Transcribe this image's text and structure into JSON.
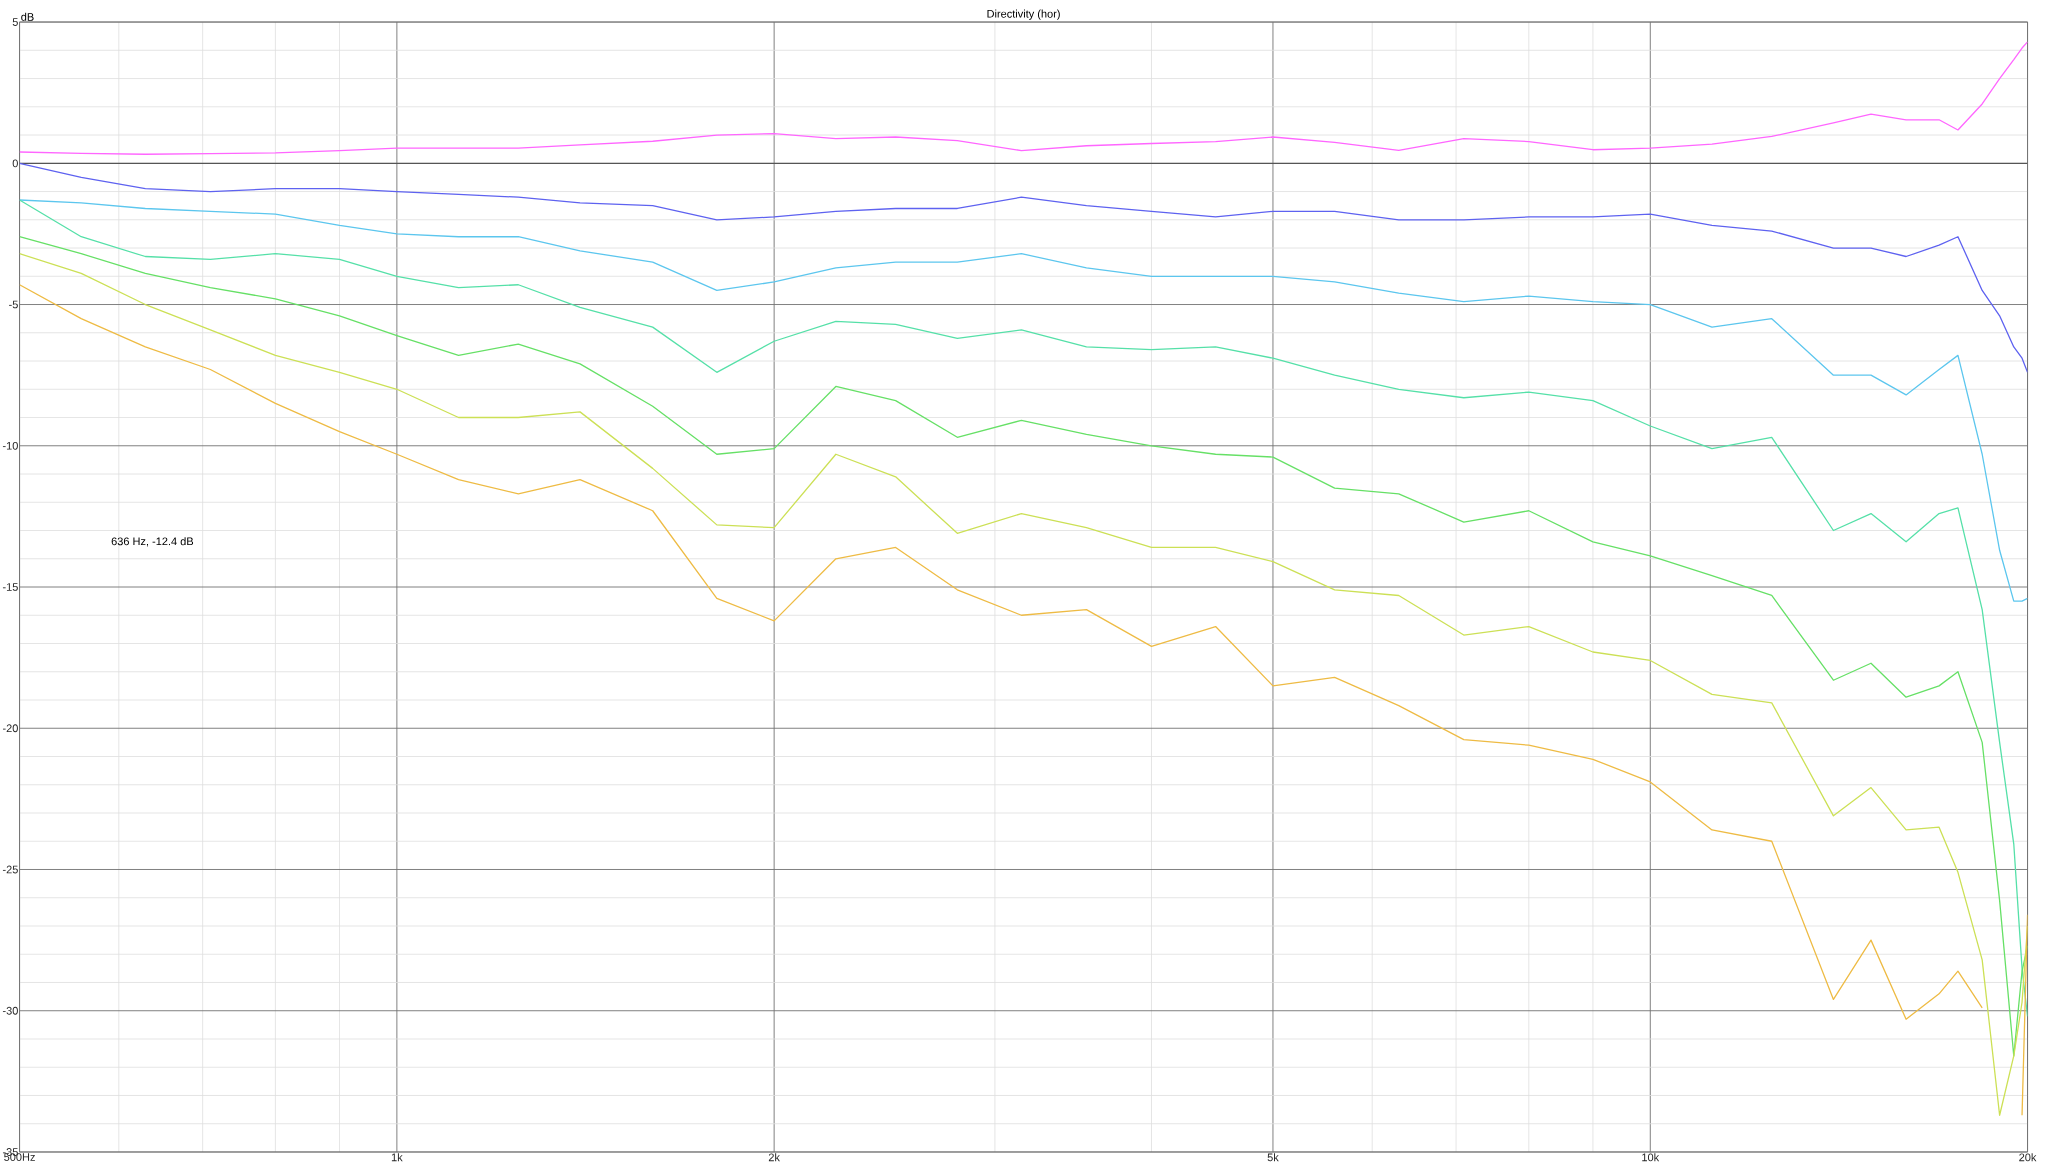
{
  "chart_data": {
    "type": "line",
    "title": "Directivity (hor)",
    "ylabel": "dB",
    "annotations": [
      "636 Hz, -12.4 dB"
    ],
    "log": "x",
    "grid": true,
    "line_style": "solid",
    "xlim": [
      500,
      20000
    ],
    "ylim": [
      -35,
      5
    ],
    "xticks": [
      {
        "value": 500,
        "label": "500Hz"
      },
      {
        "value": 1000,
        "label": "1k"
      },
      {
        "value": 2000,
        "label": "2k"
      },
      {
        "value": 5000,
        "label": "5k"
      },
      {
        "value": 10000,
        "label": "10k"
      },
      {
        "value": 20000,
        "label": "20k"
      }
    ],
    "yticks": [
      5,
      0,
      -5,
      -10,
      -15,
      -20,
      -25,
      -30,
      -35
    ],
    "x": [
      500,
      560,
      630,
      710,
      800,
      900,
      1000,
      1120,
      1250,
      1400,
      1600,
      1800,
      2000,
      2240,
      2500,
      2800,
      3150,
      3550,
      4000,
      4500,
      5000,
      5600,
      6300,
      7100,
      8000,
      9000,
      10000,
      11200,
      12500,
      14000,
      15000,
      16000,
      17000,
      17600,
      18400,
      19000,
      19500,
      19800,
      20000
    ],
    "series": [
      {
        "color": "#555555",
        "x": [
          500,
          20000
        ],
        "values": [
          0,
          0
        ]
      },
      {
        "color": "#ff66ff",
        "values": [
          0.4,
          0.35,
          0.32,
          0.34,
          0.37,
          0.45,
          0.54,
          0.54,
          0.54,
          0.65,
          0.78,
          1.0,
          1.05,
          0.87,
          0.93,
          0.8,
          0.45,
          0.62,
          0.7,
          0.77,
          0.93,
          0.74,
          0.46,
          0.87,
          0.77,
          0.48,
          0.54,
          0.68,
          0.95,
          1.43,
          1.74,
          1.54,
          1.54,
          1.18,
          2.1,
          3.0,
          3.67,
          4.08,
          4.3
        ]
      },
      {
        "color": "#5e62f0",
        "values": [
          0.0,
          -0.5,
          -0.9,
          -1.0,
          -0.9,
          -0.9,
          -1.0,
          -1.1,
          -1.2,
          -1.4,
          -1.5,
          -2.0,
          -1.9,
          -1.7,
          -1.6,
          -1.6,
          -1.2,
          -1.5,
          -1.7,
          -1.9,
          -1.7,
          -1.7,
          -2.0,
          -2.0,
          -1.9,
          -1.9,
          -1.8,
          -2.2,
          -2.4,
          -3.0,
          -3.0,
          -3.3,
          -2.9,
          -2.6,
          -4.5,
          -5.4,
          -6.5,
          -6.9,
          -7.4
        ]
      },
      {
        "color": "#5cc6ee",
        "values": [
          -1.3,
          -1.4,
          -1.6,
          -1.7,
          -1.8,
          -2.2,
          -2.5,
          -2.6,
          -2.6,
          -3.1,
          -3.5,
          -4.5,
          -4.2,
          -3.7,
          -3.5,
          -3.5,
          -3.2,
          -3.7,
          -4.0,
          -4.0,
          -4.0,
          -4.2,
          -4.6,
          -4.9,
          -4.7,
          -4.9,
          -5.0,
          -5.8,
          -5.5,
          -7.5,
          -7.5,
          -8.2,
          -7.3,
          -6.8,
          -10.3,
          -13.7,
          -15.5,
          -15.5,
          -15.4
        ]
      },
      {
        "color": "#55e0a8",
        "values": [
          -1.3,
          -2.6,
          -3.3,
          -3.4,
          -3.2,
          -3.4,
          -4.0,
          -4.4,
          -4.3,
          -5.1,
          -5.8,
          -7.4,
          -6.3,
          -5.6,
          -5.7,
          -6.2,
          -5.9,
          -6.5,
          -6.6,
          -6.5,
          -6.9,
          -7.5,
          -8.0,
          -8.3,
          -8.1,
          -8.4,
          -9.3,
          -10.1,
          -9.7,
          -13.0,
          -12.4,
          -13.4,
          -12.4,
          -12.2,
          -15.8,
          -20.5,
          -24.1,
          -28.5,
          -30.2
        ]
      },
      {
        "color": "#66e066",
        "values": [
          -2.6,
          -3.2,
          -3.9,
          -4.4,
          -4.8,
          -5.4,
          -6.1,
          -6.8,
          -6.4,
          -7.1,
          -8.6,
          -10.3,
          -10.1,
          -7.9,
          -8.4,
          -9.7,
          -9.1,
          -9.6,
          -10.0,
          -10.3,
          -10.4,
          -11.5,
          -11.7,
          -12.7,
          -12.3,
          -13.4,
          -13.9,
          -14.6,
          -15.3,
          -18.3,
          -17.7,
          -18.9,
          -18.5,
          -18.0,
          -20.5,
          -26.1,
          -31.6,
          -28.6,
          -27.7
        ]
      },
      {
        "color": "#cce055",
        "values": [
          -3.2,
          -3.9,
          -5.0,
          -5.9,
          -6.8,
          -7.4,
          -8.0,
          -9.0,
          -9.0,
          -8.8,
          -10.8,
          -12.8,
          -12.9,
          -10.3,
          -11.1,
          -13.1,
          -12.4,
          -12.9,
          -13.6,
          -13.6,
          -14.1,
          -15.1,
          -15.3,
          -16.7,
          -16.4,
          -17.3,
          -17.6,
          -18.8,
          -19.1,
          -23.1,
          -22.1,
          -23.6,
          -23.5,
          -25.1,
          -28.2,
          -33.7,
          -31.6,
          -29.7,
          -27.0
        ]
      },
      {
        "color": "#eebb44",
        "values": [
          -4.3,
          -5.5,
          -6.5,
          -7.3,
          -8.5,
          -9.5,
          -10.3,
          -11.2,
          -11.7,
          -11.2,
          -12.3,
          -15.4,
          -16.2,
          -14.0,
          -13.6,
          -15.1,
          -16.0,
          -15.8,
          -17.1,
          -16.4,
          -18.5,
          -18.2,
          -19.2,
          -20.4,
          -20.6,
          -21.1,
          -21.9,
          -23.6,
          -24.0,
          -29.6,
          -27.5,
          -30.3,
          -29.4,
          -28.6,
          -29.9,
          null,
          null,
          -33.7,
          -26.6
        ]
      }
    ]
  }
}
